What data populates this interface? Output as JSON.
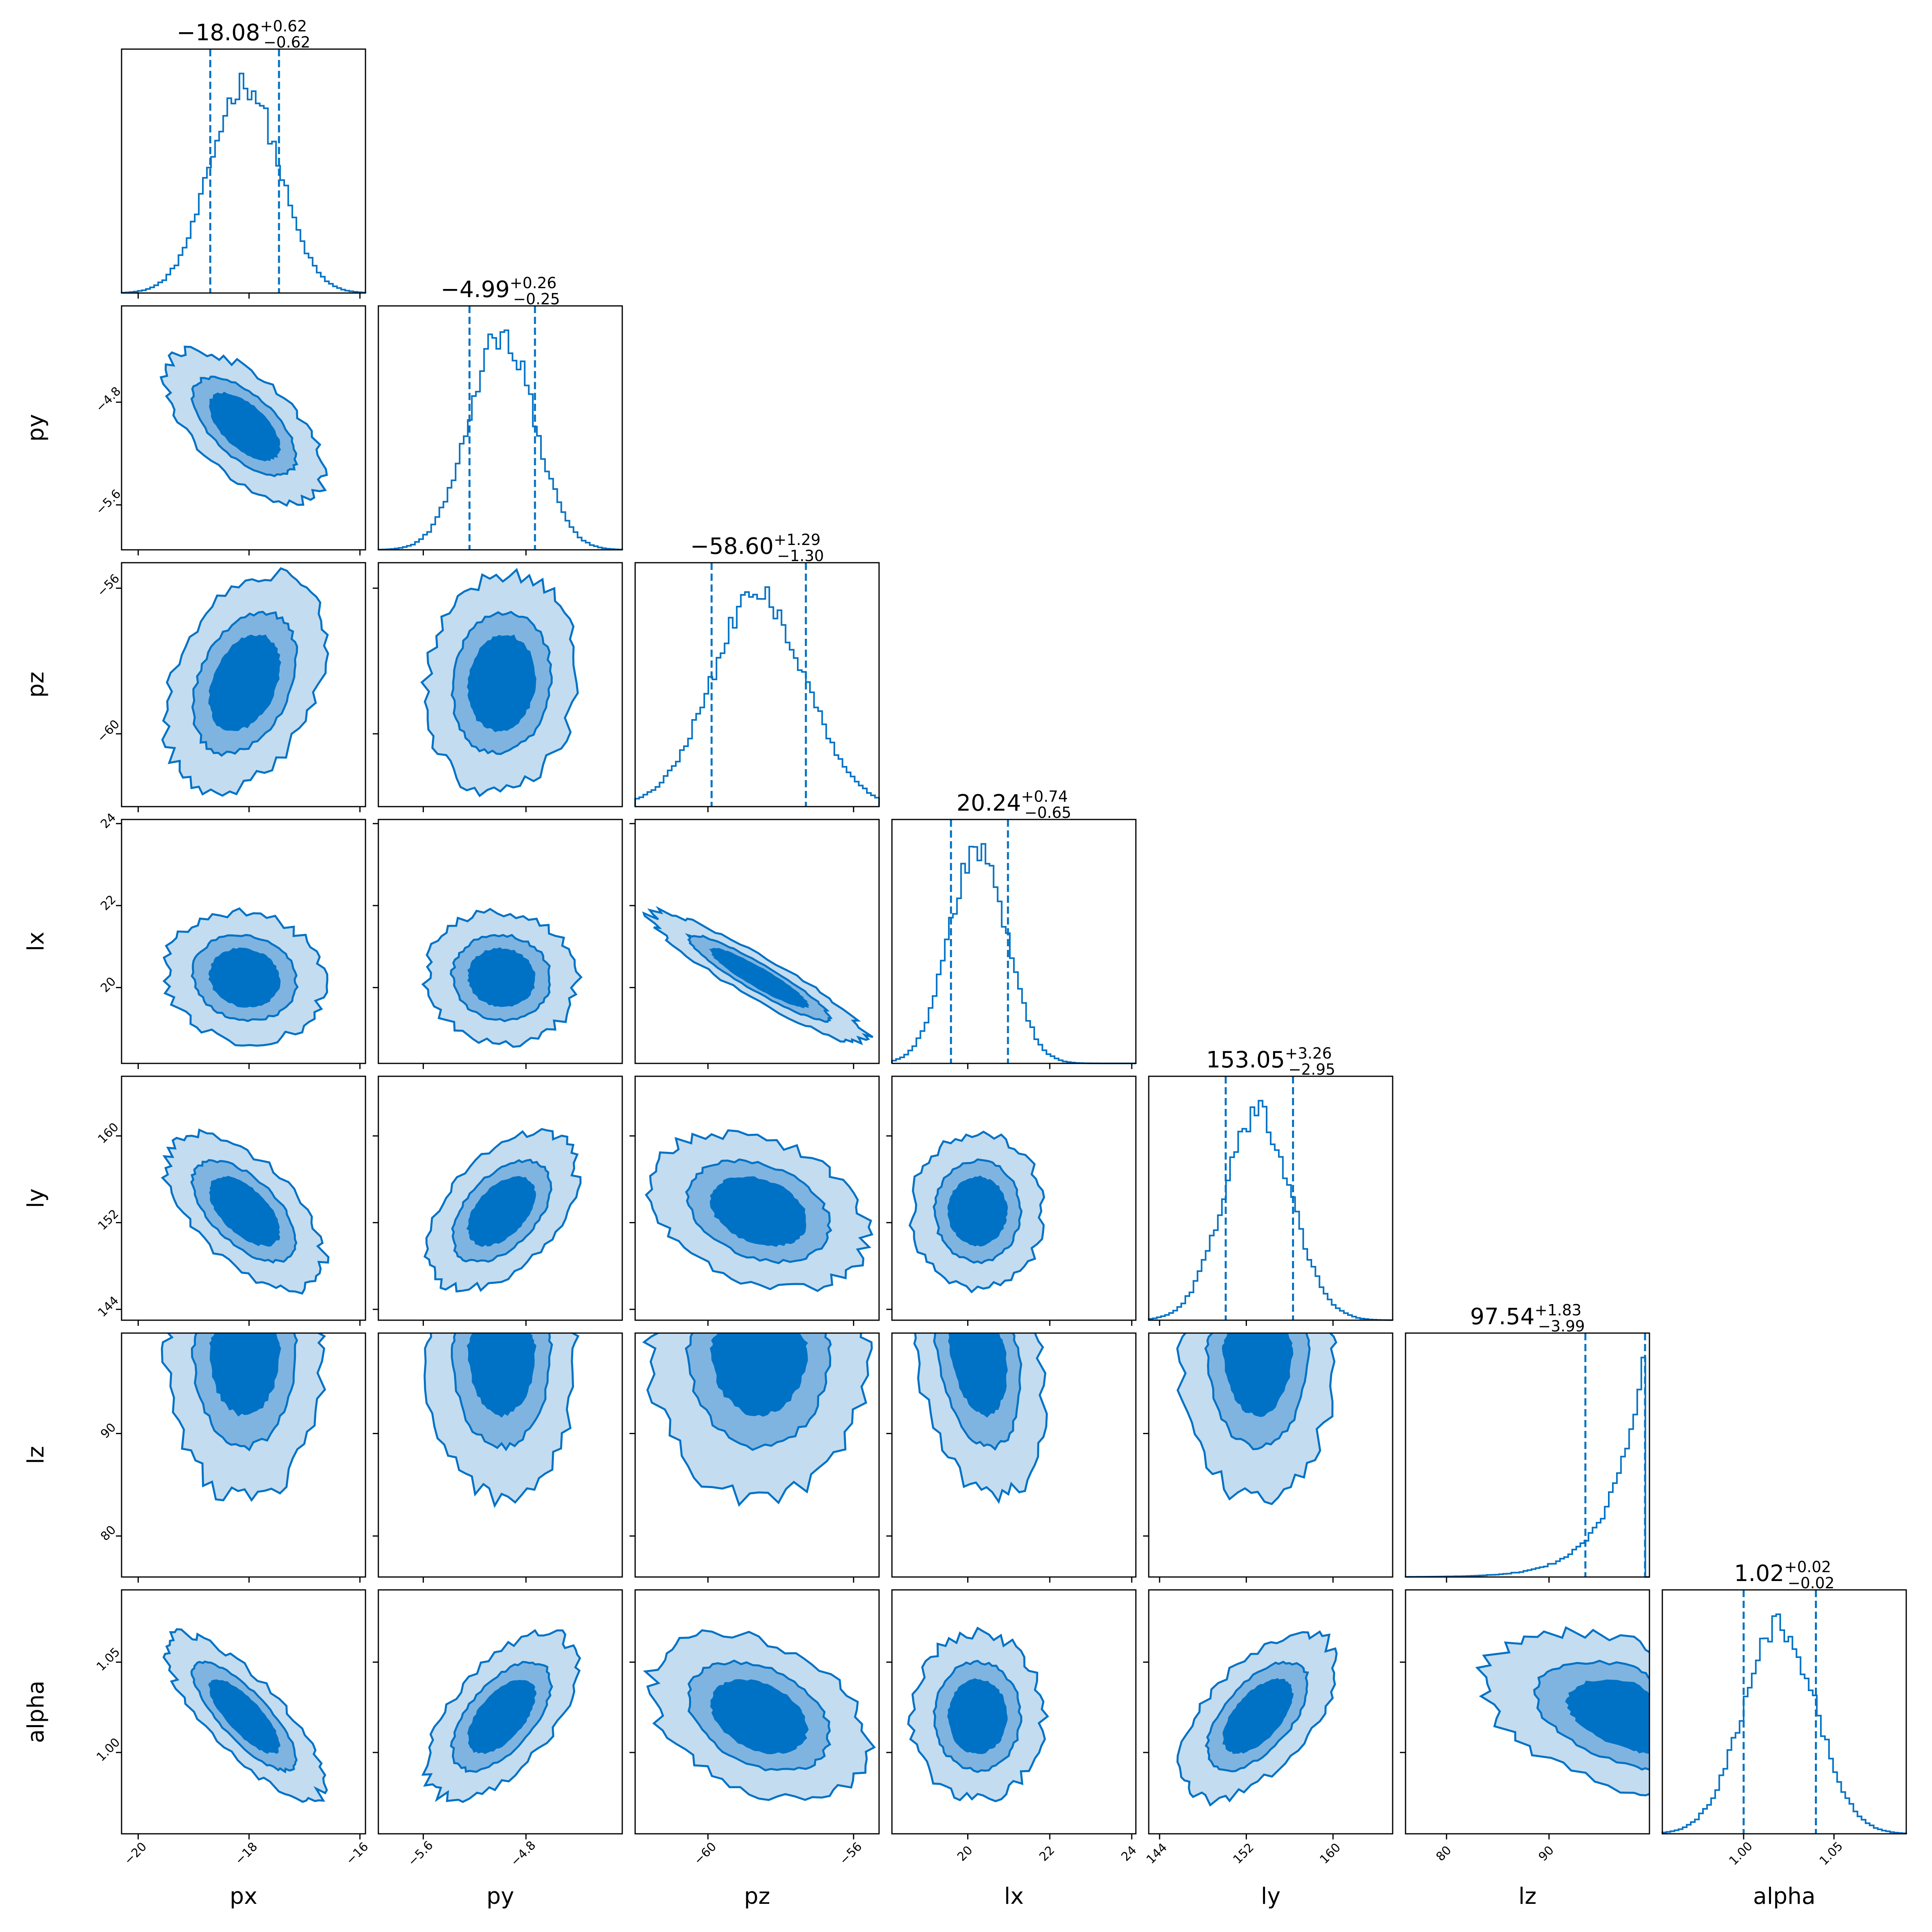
{
  "chart_data": {
    "type": "corner",
    "color": "#0072C6",
    "contour_fills": [
      "#C3DCF0",
      "#7FB4E0",
      "#0072C6"
    ],
    "parameters": [
      {
        "name": "px",
        "label": "px",
        "range": [
          -20.3,
          -15.9
        ],
        "ticks": [
          -20,
          -18,
          -16
        ],
        "tick_labels": [
          "−20",
          "−18",
          "−16"
        ],
        "median": -18.08,
        "err_plus": 0.62,
        "err_minus": 0.62,
        "title_main": "−18.08",
        "title_plus": "+0.62",
        "title_minus": "−0.62"
      },
      {
        "name": "py",
        "label": "py",
        "range": [
          -5.95,
          -4.05
        ],
        "ticks": [
          -5.6,
          -4.8
        ],
        "tick_labels": [
          "−5.6",
          "−4.8"
        ],
        "median": -4.99,
        "err_plus": 0.26,
        "err_minus": 0.25,
        "title_main": "−4.99",
        "title_plus": "+0.26",
        "title_minus": "−0.25"
      },
      {
        "name": "pz",
        "label": "pz",
        "range": [
          -62.0,
          -55.3
        ],
        "ticks": [
          -60,
          -56
        ],
        "tick_labels": [
          "−60",
          "−56"
        ],
        "median": -58.6,
        "err_plus": 1.29,
        "err_minus": 1.3,
        "title_main": "−58.60",
        "title_plus": "+1.29",
        "title_minus": "−1.30"
      },
      {
        "name": "lx",
        "label": "lx",
        "range": [
          18.15,
          24.1
        ],
        "ticks": [
          20,
          22,
          24
        ],
        "tick_labels": [
          "20",
          "22",
          "24"
        ],
        "median": 20.24,
        "err_plus": 0.74,
        "err_minus": 0.65,
        "title_main": "20.24",
        "title_plus": "+0.74",
        "title_minus": "−0.65"
      },
      {
        "name": "ly",
        "label": "ly",
        "range": [
          143.0,
          165.5
        ],
        "ticks": [
          144,
          152,
          160
        ],
        "tick_labels": [
          "144",
          "152",
          "160"
        ],
        "median": 153.05,
        "err_plus": 3.26,
        "err_minus": 2.95,
        "title_main": "153.05",
        "title_plus": "+3.26",
        "title_minus": "−2.95"
      },
      {
        "name": "lz",
        "label": "lz",
        "range": [
          76.0,
          99.8
        ],
        "ticks": [
          80,
          90
        ],
        "tick_labels": [
          "80",
          "90"
        ],
        "median": 97.54,
        "err_plus": 1.83,
        "err_minus": 3.99,
        "title_main": "97.54",
        "title_plus": "+1.83",
        "title_minus": "−3.99"
      },
      {
        "name": "alpha",
        "label": "alpha",
        "range": [
          0.955,
          1.09
        ],
        "ticks": [
          1.0,
          1.05
        ],
        "tick_labels": [
          "1.00",
          "1.05"
        ],
        "median": 1.02,
        "err_plus": 0.02,
        "err_minus": 0.02,
        "title_main": "1.02",
        "title_plus": "+0.02",
        "title_minus": "−0.02"
      }
    ],
    "quantile_lines": {
      "px": [
        -18.7,
        -17.46
      ],
      "py": [
        -5.24,
        -4.73
      ],
      "pz": [
        -59.9,
        -57.31
      ],
      "lx": [
        19.59,
        20.98
      ],
      "ly": [
        150.1,
        156.31
      ],
      "lz": [
        93.55,
        99.37
      ],
      "alpha": [
        1.0,
        1.04
      ]
    },
    "correlations": {
      "py|px": -0.62,
      "pz|px": 0.35,
      "pz|py": 0.1,
      "lx|px": -0.1,
      "lx|py": -0.05,
      "lx|pz": -0.93,
      "ly|px": -0.6,
      "ly|py": 0.5,
      "ly|pz": -0.3,
      "ly|lx": 0.0,
      "lz|px": 0.0,
      "lz|py": 0.0,
      "lz|pz": 0.0,
      "lz|lx": -0.3,
      "lz|ly": 0.0,
      "alpha|px": -0.8,
      "alpha|py": 0.6,
      "alpha|pz": -0.35,
      "alpha|lx": 0.0,
      "alpha|ly": 0.6,
      "alpha|lz": -0.4
    },
    "levels_sigma": [
      1,
      1.5,
      2.3
    ]
  }
}
